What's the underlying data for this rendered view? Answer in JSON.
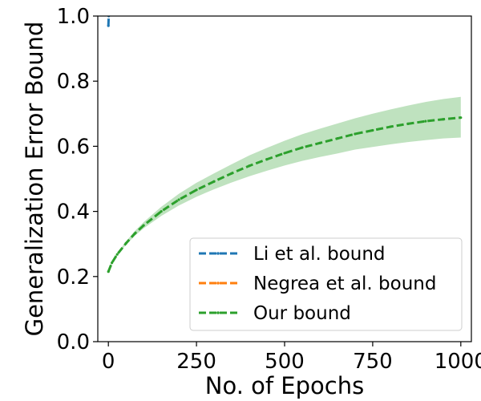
{
  "chart_data": {
    "type": "line",
    "title": "",
    "xlabel": "No. of Epochs",
    "ylabel": "Generalization Error Bound",
    "xlim": [
      -30,
      1030
    ],
    "ylim": [
      0.0,
      1.0
    ],
    "xticks": [
      0,
      250,
      500,
      750,
      1000
    ],
    "yticks": [
      0.0,
      0.2,
      0.4,
      0.6,
      0.8,
      1.0
    ],
    "xtick_labels": [
      "0",
      "250",
      "500",
      "750",
      "1000"
    ],
    "ytick_labels": [
      "0.0",
      "0.2",
      "0.4",
      "0.6",
      "0.8",
      "1.0"
    ],
    "grid": false,
    "legend_position": "lower-right",
    "series": [
      {
        "name": "Li et al. bound",
        "color": "#1f77b4",
        "linestyle": "dashed",
        "marker": "point",
        "x": [
          0,
          1,
          2
        ],
        "y": [
          0.97,
          1.0,
          1.03
        ]
      },
      {
        "name": "Negrea et al. bound",
        "color": "#ff7f0e",
        "linestyle": "dashed",
        "marker": "point",
        "x": [],
        "y": []
      },
      {
        "name": "Our bound",
        "color": "#2ca02c",
        "linestyle": "dashed",
        "marker": "point",
        "band_color": "#2ca02c",
        "x": [
          0,
          10,
          25,
          50,
          75,
          100,
          150,
          200,
          250,
          300,
          350,
          400,
          450,
          500,
          550,
          600,
          650,
          700,
          750,
          800,
          850,
          900,
          950,
          1000
        ],
        "y": [
          0.215,
          0.242,
          0.268,
          0.302,
          0.332,
          0.357,
          0.4,
          0.436,
          0.466,
          0.492,
          0.517,
          0.54,
          0.56,
          0.579,
          0.596,
          0.61,
          0.624,
          0.638,
          0.649,
          0.66,
          0.669,
          0.677,
          0.683,
          0.688
        ],
        "y_lower": [
          0.212,
          0.24,
          0.265,
          0.297,
          0.325,
          0.348,
          0.386,
          0.418,
          0.445,
          0.468,
          0.489,
          0.508,
          0.525,
          0.541,
          0.555,
          0.567,
          0.578,
          0.59,
          0.598,
          0.606,
          0.613,
          0.619,
          0.624,
          0.627
        ],
        "y_upper": [
          0.218,
          0.245,
          0.272,
          0.308,
          0.34,
          0.367,
          0.414,
          0.454,
          0.488,
          0.517,
          0.545,
          0.572,
          0.595,
          0.617,
          0.637,
          0.654,
          0.67,
          0.686,
          0.7,
          0.713,
          0.725,
          0.736,
          0.745,
          0.752
        ]
      }
    ]
  }
}
